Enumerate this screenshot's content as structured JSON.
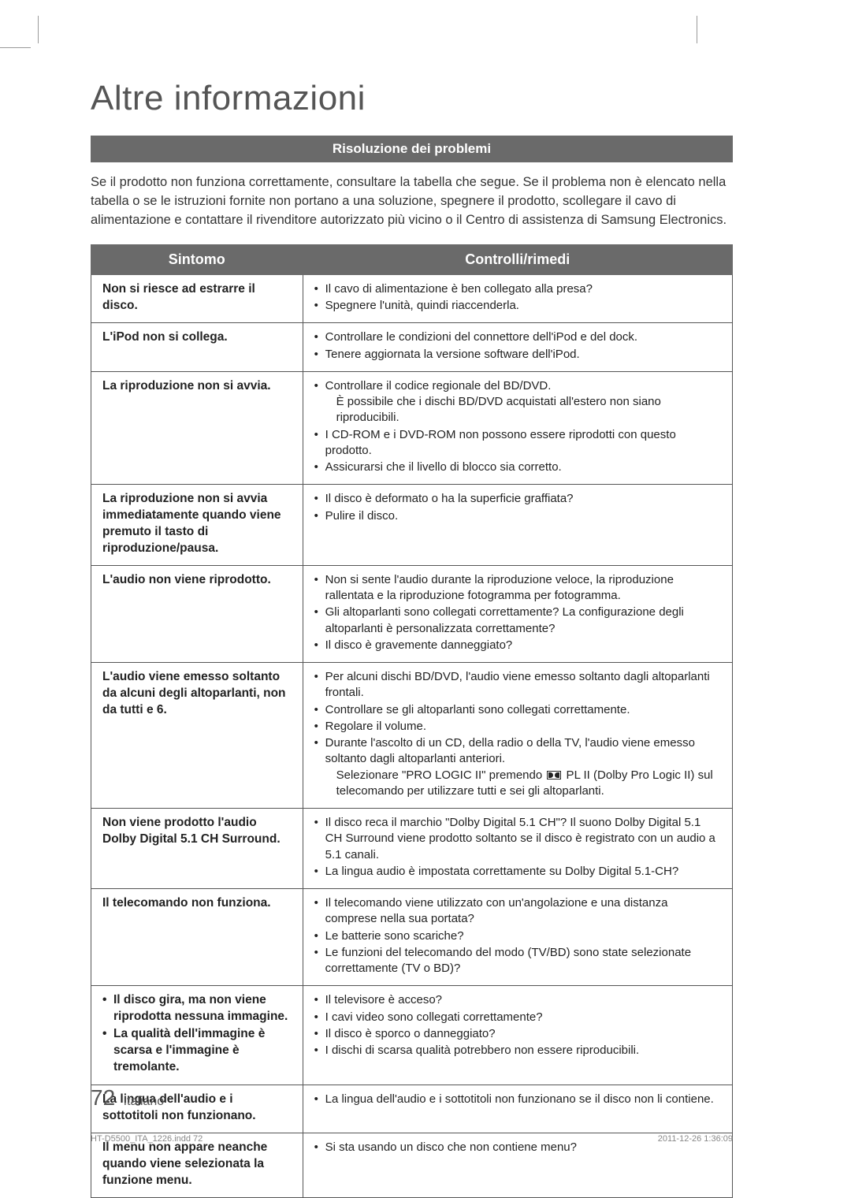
{
  "colors": {
    "bar_bg": "#6a6a6a",
    "bar_fg": "#ffffff",
    "text": "#222222",
    "muted": "#555555",
    "border": "#555555"
  },
  "typography": {
    "title_fontsize_pt": 33,
    "header_fontsize_pt": 13,
    "body_fontsize_pt": 11
  },
  "page": {
    "title": "Altre informazioni",
    "section_header": "Risoluzione dei problemi",
    "intro": "Se il prodotto non funziona correttamente, consultare la tabella che segue. Se il problema non è elencato nella tabella o se le istruzioni fornite non portano a una soluzione, spegnere il prodotto, scollegare il cavo di alimentazione e contattare il rivenditore autorizzato più vicino o il Centro di assistenza di Samsung Electronics.",
    "columns": {
      "symptom": "Sintomo",
      "remedy": "Controlli/rimedi"
    },
    "page_number": "72",
    "page_language": "Italiano",
    "print_file": "HT-D5500_ITA_1226.indd   72",
    "print_timestamp": "2011-12-26   1:36:09"
  },
  "table": {
    "column_widths_pct": [
      33,
      67
    ],
    "rows": [
      {
        "symptom": "Non si riesce ad estrarre il disco.",
        "remedies": [
          "Il cavo di alimentazione è ben collegato alla presa?",
          "Spegnere l'unità, quindi riaccenderla."
        ]
      },
      {
        "symptom": "L'iPod non si collega.",
        "remedies": [
          "Controllare le condizioni del connettore dell'iPod e del dock.",
          "Tenere aggiornata la versione software dell'iPod."
        ]
      },
      {
        "symptom": "La riproduzione non si avvia.",
        "remedies": [
          {
            "text": "Controllare il codice regionale del BD/DVD.",
            "sub": "È possibile che i dischi BD/DVD acquistati all'estero non siano riproducibili."
          },
          "I CD-ROM e i DVD-ROM non possono essere riprodotti con questo prodotto.",
          "Assicurarsi che il livello di blocco sia corretto."
        ]
      },
      {
        "symptom": "La riproduzione non si avvia immediatamente quando viene premuto il tasto di riproduzione/pausa.",
        "remedies": [
          "Il disco è deformato o ha la superficie graffiata?",
          "Pulire il disco."
        ]
      },
      {
        "symptom": "L'audio non viene riprodotto.",
        "remedies": [
          "Non si sente l'audio durante la riproduzione veloce, la riproduzione rallentata e la riproduzione fotogramma per fotogramma.",
          "Gli altoparlanti sono collegati correttamente? La configurazione degli altoparlanti è personalizzata correttamente?",
          "Il disco è gravemente danneggiato?"
        ]
      },
      {
        "symptom": "L'audio viene emesso soltanto da alcuni degli altoparlanti, non da tutti e 6.",
        "remedies": [
          "Per alcuni dischi BD/DVD, l'audio viene emesso soltanto dagli altoparlanti frontali.",
          "Controllare se gli altoparlanti sono collegati correttamente.",
          "Regolare il volume.",
          {
            "text": "Durante l'ascolto di un CD, della radio o della TV, l'audio viene emesso soltanto dagli altoparlanti anteriori.",
            "sub_icon": true,
            "sub": "Selezionare \"PRO LOGIC II\" premendo  PL II (Dolby Pro Logic II) sul telecomando per utilizzare tutti e sei gli altoparlanti."
          }
        ]
      },
      {
        "symptom": "Non viene prodotto l'audio Dolby Digital 5.1 CH Surround.",
        "remedies": [
          "Il disco reca il marchio \"Dolby Digital 5.1 CH\"? Il suono Dolby Digital 5.1 CH Surround viene prodotto soltanto se il disco è registrato con un audio a 5.1 canali.",
          "La lingua audio è impostata correttamente su Dolby Digital 5.1-CH?"
        ]
      },
      {
        "symptom": "Il telecomando non funziona.",
        "remedies": [
          "Il telecomando viene utilizzato con un'angolazione e una distanza comprese nella sua portata?",
          "Le batterie sono scariche?",
          "Le funzioni del telecomando del modo (TV/BD) sono state selezionate correttamente (TV o BD)?"
        ]
      },
      {
        "symptom_list": [
          "Il disco gira, ma non viene riprodotta nessuna immagine.",
          "La qualità dell'immagine è scarsa e l'immagine è tremolante."
        ],
        "remedies": [
          "Il televisore è acceso?",
          "I cavi video sono collegati correttamente?",
          "Il disco è sporco o danneggiato?",
          "I dischi di scarsa qualità potrebbero non essere riproducibili."
        ]
      },
      {
        "symptom": "La lingua dell'audio e i sottotitoli non funzionano.",
        "remedies": [
          "La lingua dell'audio e i sottotitoli non funzionano se il disco non li contiene."
        ]
      },
      {
        "symptom": "Il menu non appare neanche quando viene selezionata la funzione menu.",
        "remedies": [
          "Si sta usando un disco che non contiene menu?"
        ]
      }
    ]
  }
}
